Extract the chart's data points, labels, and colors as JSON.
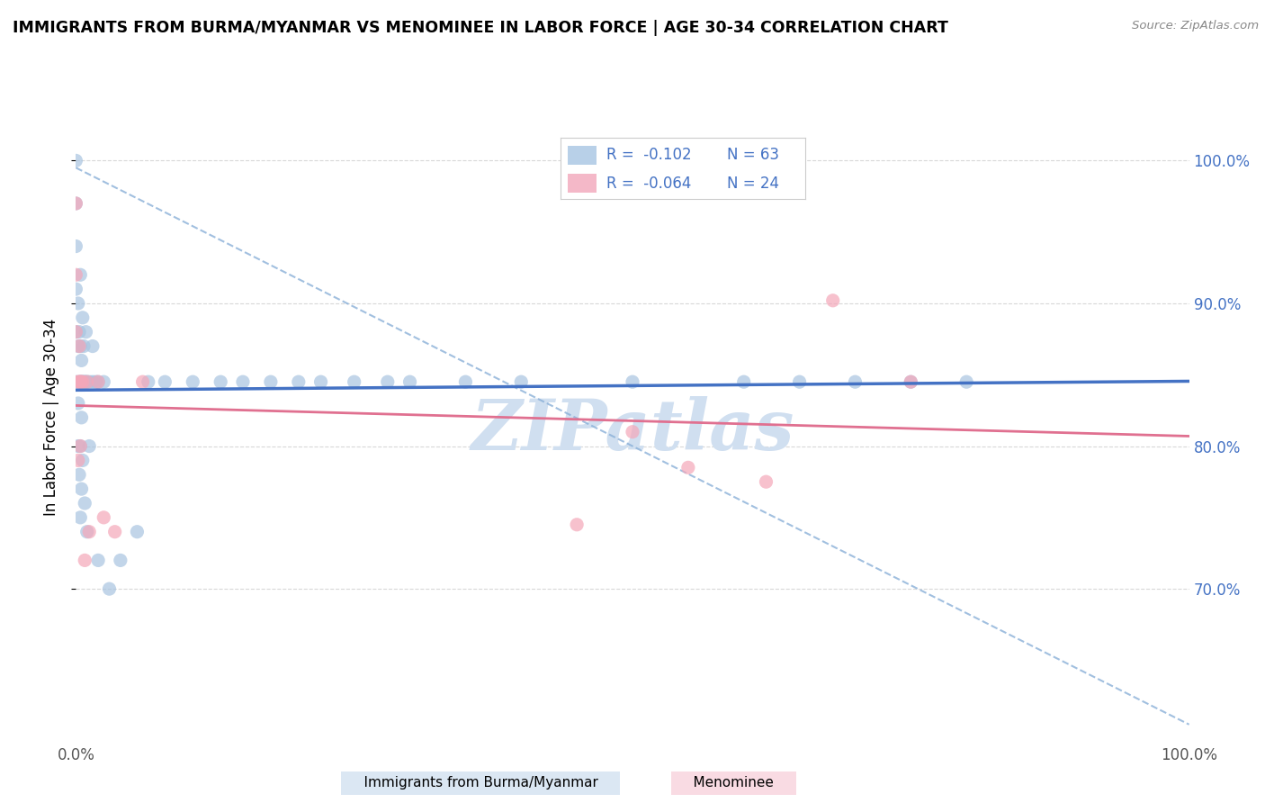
{
  "title": "IMMIGRANTS FROM BURMA/MYANMAR VS MENOMINEE IN LABOR FORCE | AGE 30-34 CORRELATION CHART",
  "source": "Source: ZipAtlas.com",
  "ylabel": "In Labor Force | Age 30-34",
  "xmin": 0.0,
  "xmax": 1.0,
  "ymin": 0.595,
  "ymax": 1.045,
  "ytick_values": [
    0.7,
    0.8,
    0.9,
    1.0
  ],
  "blue_scatter_x": [
    0.0,
    0.0,
    0.0,
    0.0,
    0.0,
    0.0,
    0.002,
    0.002,
    0.002,
    0.002,
    0.003,
    0.003,
    0.003,
    0.004,
    0.004,
    0.004,
    0.004,
    0.004,
    0.005,
    0.005,
    0.005,
    0.005,
    0.006,
    0.006,
    0.006,
    0.007,
    0.007,
    0.008,
    0.008,
    0.009,
    0.009,
    0.01,
    0.01,
    0.012,
    0.012,
    0.015,
    0.015,
    0.018,
    0.02,
    0.02,
    0.025,
    0.03,
    0.04,
    0.055,
    0.065,
    0.08,
    0.105,
    0.13,
    0.15,
    0.175,
    0.2,
    0.22,
    0.25,
    0.28,
    0.3,
    0.35,
    0.4,
    0.5,
    0.6,
    0.65,
    0.7,
    0.75,
    0.8
  ],
  "blue_scatter_y": [
    0.845,
    0.88,
    0.91,
    0.94,
    0.97,
    1.0,
    0.8,
    0.83,
    0.87,
    0.9,
    0.78,
    0.845,
    0.88,
    0.75,
    0.8,
    0.845,
    0.87,
    0.92,
    0.77,
    0.82,
    0.845,
    0.86,
    0.79,
    0.845,
    0.89,
    0.845,
    0.87,
    0.76,
    0.845,
    0.845,
    0.88,
    0.74,
    0.845,
    0.8,
    0.845,
    0.845,
    0.87,
    0.845,
    0.72,
    0.845,
    0.845,
    0.7,
    0.72,
    0.74,
    0.845,
    0.845,
    0.845,
    0.845,
    0.845,
    0.845,
    0.845,
    0.845,
    0.845,
    0.845,
    0.845,
    0.845,
    0.845,
    0.845,
    0.845,
    0.845,
    0.845,
    0.845,
    0.845
  ],
  "pink_scatter_x": [
    0.0,
    0.0,
    0.0,
    0.002,
    0.002,
    0.003,
    0.003,
    0.004,
    0.004,
    0.005,
    0.006,
    0.008,
    0.01,
    0.012,
    0.02,
    0.025,
    0.035,
    0.06,
    0.45,
    0.5,
    0.55,
    0.62,
    0.68,
    0.75
  ],
  "pink_scatter_y": [
    0.88,
    0.92,
    0.97,
    0.79,
    0.845,
    0.845,
    0.87,
    0.8,
    0.845,
    0.845,
    0.845,
    0.72,
    0.845,
    0.74,
    0.845,
    0.75,
    0.74,
    0.845,
    0.745,
    0.81,
    0.785,
    0.775,
    0.902,
    0.845
  ],
  "blue_color": "#a8c4e0",
  "pink_color": "#f4a7b9",
  "blue_line_color": "#4472c4",
  "pink_line_color": "#e07090",
  "dashed_line_color": "#8ab0d8",
  "watermark_color": "#d0dff0",
  "R_blue": -0.102,
  "N_blue": 63,
  "R_pink": -0.064,
  "N_pink": 24,
  "legend_box_blue": "#b8d0e8",
  "legend_box_pink": "#f4b8c8",
  "background_color": "#ffffff",
  "grid_color": "#d8d8d8"
}
